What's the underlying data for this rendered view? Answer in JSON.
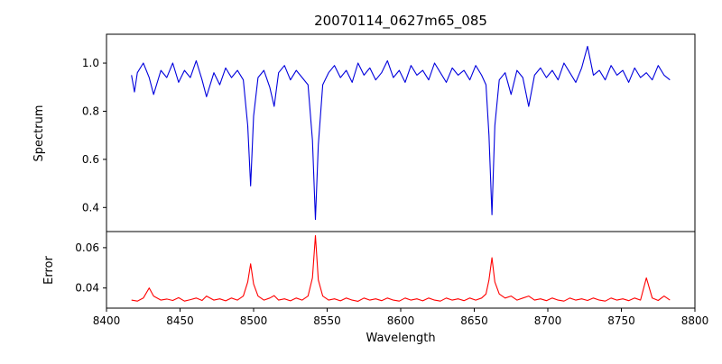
{
  "chart_data": {
    "type": "line",
    "title": "20070114_0627m65_085",
    "xlabel": "Wavelength",
    "xlim": [
      8400,
      8800
    ],
    "x_ticks": [
      8400,
      8450,
      8500,
      8550,
      8600,
      8650,
      8700,
      8750,
      8800
    ],
    "x_tick_labels": [
      "8400",
      "8450",
      "8500",
      "8550",
      "8600",
      "8650",
      "8700",
      "8750",
      "8800"
    ],
    "legend": "none",
    "grid": false,
    "panels": [
      {
        "ylabel": "Spectrum",
        "ylim": [
          0.3,
          1.12
        ],
        "y_ticks": [
          0.4,
          0.6,
          0.8,
          1.0
        ],
        "y_tick_labels": [
          "0.4",
          "0.6",
          "0.8",
          "1.0"
        ],
        "color": "#0000dd",
        "series_name": "spectrum",
        "absorption_line_centers": [
          8498,
          8542,
          8662
        ],
        "absorption_line_depths": [
          0.49,
          0.35,
          0.37
        ],
        "points": [
          [
            8417,
            0.95
          ],
          [
            8419,
            0.88
          ],
          [
            8421,
            0.96
          ],
          [
            8425,
            1.0
          ],
          [
            8429,
            0.94
          ],
          [
            8432,
            0.87
          ],
          [
            8437,
            0.97
          ],
          [
            8441,
            0.94
          ],
          [
            8445,
            1.0
          ],
          [
            8449,
            0.92
          ],
          [
            8453,
            0.97
          ],
          [
            8457,
            0.94
          ],
          [
            8461,
            1.01
          ],
          [
            8465,
            0.93
          ],
          [
            8468,
            0.86
          ],
          [
            8473,
            0.96
          ],
          [
            8477,
            0.91
          ],
          [
            8481,
            0.98
          ],
          [
            8485,
            0.94
          ],
          [
            8489,
            0.97
          ],
          [
            8493,
            0.93
          ],
          [
            8496,
            0.74
          ],
          [
            8498,
            0.49
          ],
          [
            8500,
            0.78
          ],
          [
            8503,
            0.94
          ],
          [
            8507,
            0.97
          ],
          [
            8511,
            0.9
          ],
          [
            8514,
            0.82
          ],
          [
            8517,
            0.96
          ],
          [
            8521,
            0.99
          ],
          [
            8525,
            0.93
          ],
          [
            8529,
            0.97
          ],
          [
            8533,
            0.94
          ],
          [
            8537,
            0.91
          ],
          [
            8540,
            0.68
          ],
          [
            8542,
            0.35
          ],
          [
            8544,
            0.66
          ],
          [
            8547,
            0.91
          ],
          [
            8551,
            0.96
          ],
          [
            8555,
            0.99
          ],
          [
            8559,
            0.94
          ],
          [
            8563,
            0.97
          ],
          [
            8567,
            0.92
          ],
          [
            8571,
            1.0
          ],
          [
            8575,
            0.95
          ],
          [
            8579,
            0.98
          ],
          [
            8583,
            0.93
          ],
          [
            8587,
            0.96
          ],
          [
            8591,
            1.01
          ],
          [
            8595,
            0.94
          ],
          [
            8599,
            0.97
          ],
          [
            8603,
            0.92
          ],
          [
            8607,
            0.99
          ],
          [
            8611,
            0.95
          ],
          [
            8615,
            0.97
          ],
          [
            8619,
            0.93
          ],
          [
            8623,
            1.0
          ],
          [
            8627,
            0.96
          ],
          [
            8631,
            0.92
          ],
          [
            8635,
            0.98
          ],
          [
            8639,
            0.95
          ],
          [
            8643,
            0.97
          ],
          [
            8647,
            0.93
          ],
          [
            8651,
            0.99
          ],
          [
            8655,
            0.95
          ],
          [
            8658,
            0.91
          ],
          [
            8660,
            0.7
          ],
          [
            8662,
            0.37
          ],
          [
            8664,
            0.74
          ],
          [
            8667,
            0.93
          ],
          [
            8671,
            0.96
          ],
          [
            8675,
            0.87
          ],
          [
            8679,
            0.97
          ],
          [
            8683,
            0.94
          ],
          [
            8687,
            0.82
          ],
          [
            8691,
            0.95
          ],
          [
            8695,
            0.98
          ],
          [
            8699,
            0.94
          ],
          [
            8703,
            0.97
          ],
          [
            8707,
            0.93
          ],
          [
            8711,
            1.0
          ],
          [
            8715,
            0.96
          ],
          [
            8719,
            0.92
          ],
          [
            8723,
            0.98
          ],
          [
            8727,
            1.07
          ],
          [
            8731,
            0.95
          ],
          [
            8735,
            0.97
          ],
          [
            8739,
            0.93
          ],
          [
            8743,
            0.99
          ],
          [
            8747,
            0.95
          ],
          [
            8751,
            0.97
          ],
          [
            8755,
            0.92
          ],
          [
            8759,
            0.98
          ],
          [
            8763,
            0.94
          ],
          [
            8767,
            0.96
          ],
          [
            8771,
            0.93
          ],
          [
            8775,
            0.99
          ],
          [
            8779,
            0.95
          ],
          [
            8783,
            0.93
          ]
        ]
      },
      {
        "ylabel": "Error",
        "ylim": [
          0.03,
          0.068
        ],
        "y_ticks": [
          0.04,
          0.06
        ],
        "y_tick_labels": [
          "0.04",
          "0.06"
        ],
        "color": "#ff0000",
        "series_name": "error",
        "peak_centers": [
          8498,
          8542,
          8662,
          8767
        ],
        "peak_heights": [
          0.052,
          0.066,
          0.055,
          0.045
        ],
        "points": [
          [
            8417,
            0.034
          ],
          [
            8421,
            0.0335
          ],
          [
            8425,
            0.035
          ],
          [
            8429,
            0.04
          ],
          [
            8432,
            0.036
          ],
          [
            8437,
            0.034
          ],
          [
            8441,
            0.0345
          ],
          [
            8445,
            0.0338
          ],
          [
            8449,
            0.0352
          ],
          [
            8453,
            0.0335
          ],
          [
            8457,
            0.0342
          ],
          [
            8461,
            0.035
          ],
          [
            8465,
            0.0338
          ],
          [
            8468,
            0.036
          ],
          [
            8473,
            0.034
          ],
          [
            8477,
            0.0346
          ],
          [
            8481,
            0.0336
          ],
          [
            8485,
            0.035
          ],
          [
            8489,
            0.034
          ],
          [
            8493,
            0.036
          ],
          [
            8496,
            0.043
          ],
          [
            8498,
            0.052
          ],
          [
            8500,
            0.042
          ],
          [
            8503,
            0.036
          ],
          [
            8507,
            0.034
          ],
          [
            8511,
            0.035
          ],
          [
            8514,
            0.0362
          ],
          [
            8517,
            0.034
          ],
          [
            8521,
            0.0346
          ],
          [
            8525,
            0.0336
          ],
          [
            8529,
            0.035
          ],
          [
            8533,
            0.034
          ],
          [
            8537,
            0.036
          ],
          [
            8540,
            0.045
          ],
          [
            8542,
            0.066
          ],
          [
            8544,
            0.044
          ],
          [
            8547,
            0.036
          ],
          [
            8551,
            0.034
          ],
          [
            8555,
            0.0346
          ],
          [
            8559,
            0.0336
          ],
          [
            8563,
            0.035
          ],
          [
            8567,
            0.034
          ],
          [
            8571,
            0.0334
          ],
          [
            8575,
            0.035
          ],
          [
            8579,
            0.034
          ],
          [
            8583,
            0.0346
          ],
          [
            8587,
            0.0337
          ],
          [
            8591,
            0.035
          ],
          [
            8595,
            0.034
          ],
          [
            8599,
            0.0335
          ],
          [
            8603,
            0.035
          ],
          [
            8607,
            0.034
          ],
          [
            8611,
            0.0346
          ],
          [
            8615,
            0.0336
          ],
          [
            8619,
            0.035
          ],
          [
            8623,
            0.034
          ],
          [
            8627,
            0.0335
          ],
          [
            8631,
            0.035
          ],
          [
            8635,
            0.034
          ],
          [
            8639,
            0.0346
          ],
          [
            8643,
            0.0337
          ],
          [
            8647,
            0.035
          ],
          [
            8651,
            0.034
          ],
          [
            8655,
            0.035
          ],
          [
            8658,
            0.037
          ],
          [
            8660,
            0.044
          ],
          [
            8662,
            0.055
          ],
          [
            8664,
            0.043
          ],
          [
            8667,
            0.037
          ],
          [
            8671,
            0.035
          ],
          [
            8675,
            0.036
          ],
          [
            8679,
            0.034
          ],
          [
            8683,
            0.035
          ],
          [
            8687,
            0.036
          ],
          [
            8691,
            0.034
          ],
          [
            8695,
            0.0346
          ],
          [
            8699,
            0.0337
          ],
          [
            8703,
            0.035
          ],
          [
            8707,
            0.034
          ],
          [
            8711,
            0.0335
          ],
          [
            8715,
            0.035
          ],
          [
            8719,
            0.034
          ],
          [
            8723,
            0.0346
          ],
          [
            8727,
            0.0338
          ],
          [
            8731,
            0.035
          ],
          [
            8735,
            0.034
          ],
          [
            8739,
            0.0335
          ],
          [
            8743,
            0.035
          ],
          [
            8747,
            0.034
          ],
          [
            8751,
            0.0346
          ],
          [
            8755,
            0.0337
          ],
          [
            8759,
            0.035
          ],
          [
            8763,
            0.034
          ],
          [
            8767,
            0.045
          ],
          [
            8771,
            0.035
          ],
          [
            8775,
            0.0338
          ],
          [
            8779,
            0.036
          ],
          [
            8783,
            0.034
          ]
        ]
      }
    ]
  }
}
